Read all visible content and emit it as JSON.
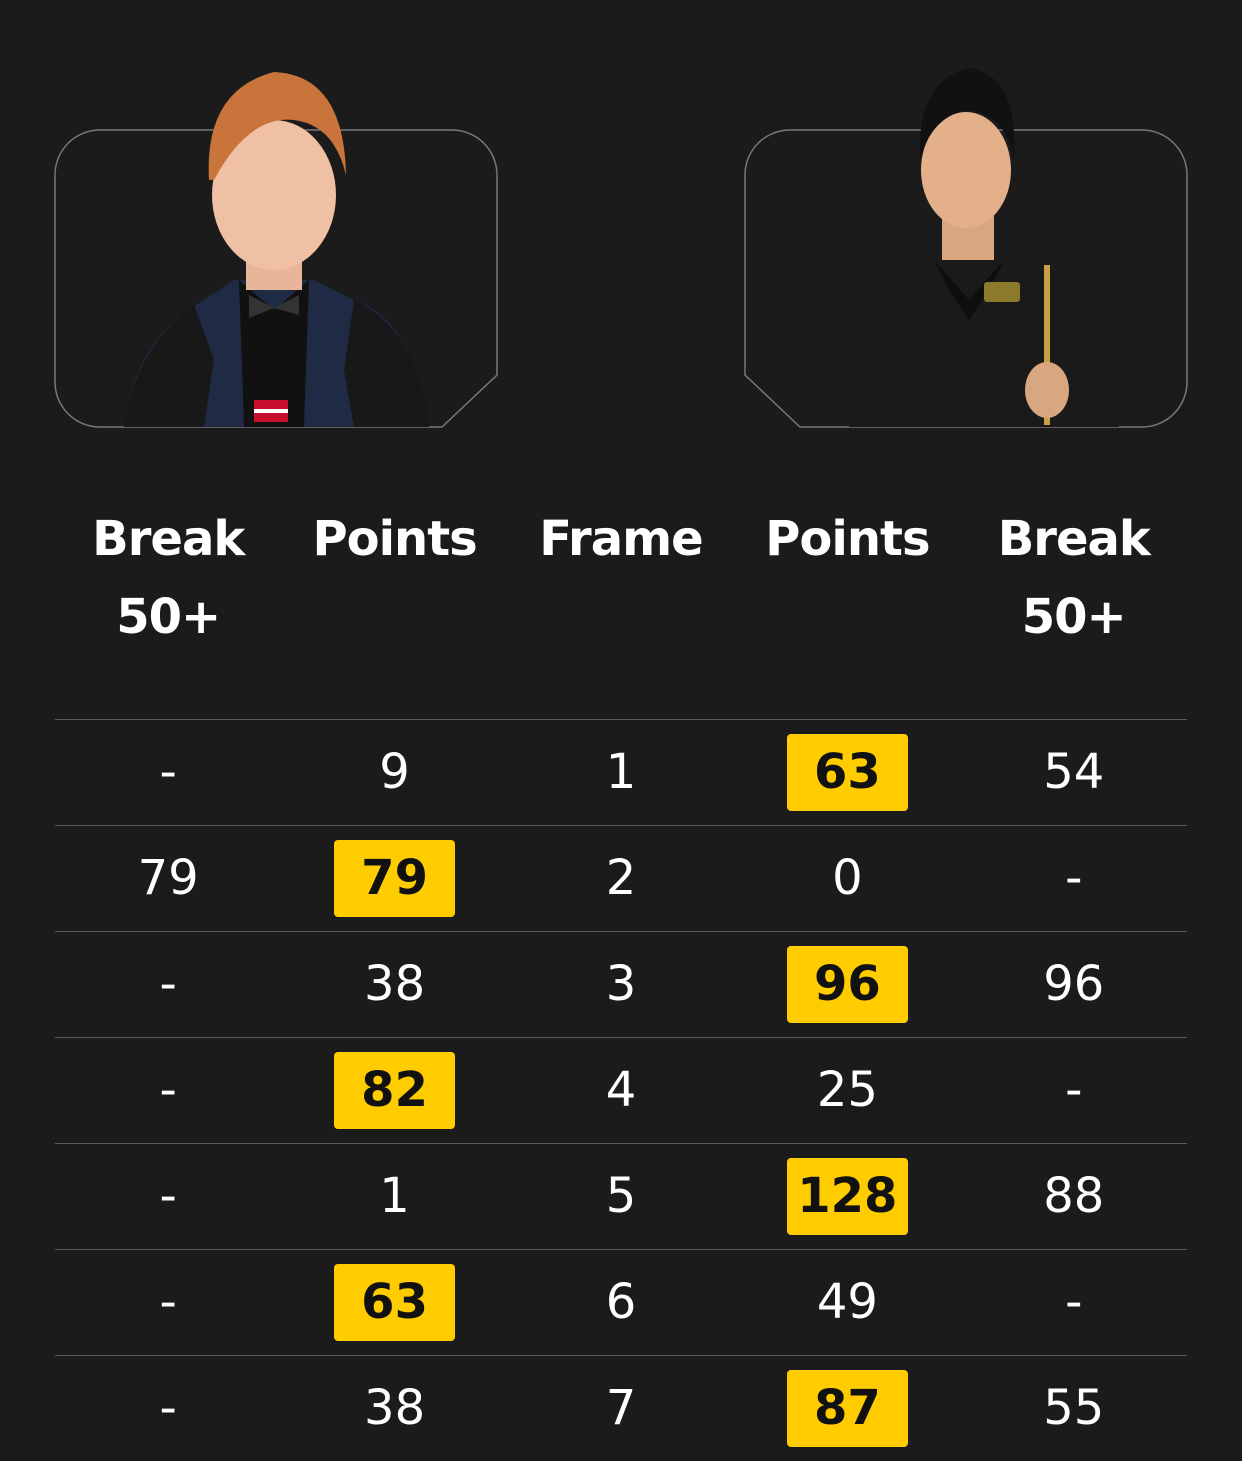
{
  "players": [
    {
      "side": "left",
      "photo": "player-photo-red-hair",
      "flag": "latvia-flag-badge"
    },
    {
      "side": "right",
      "photo": "player-photo-dark-hair-with-cue"
    }
  ],
  "headers": [
    "Break 50+",
    "Points",
    "Frame",
    "Points",
    "Break 50+"
  ],
  "colors": {
    "background": "#1b1b1b",
    "highlight": "#ffcc00",
    "divider": "#5a5a5a"
  },
  "rows": [
    {
      "break1": "-",
      "points1": "9",
      "frame": "1",
      "points2": "63",
      "break2": "54",
      "winner": "right"
    },
    {
      "break1": "79",
      "points1": "79",
      "frame": "2",
      "points2": "0",
      "break2": "-",
      "winner": "left"
    },
    {
      "break1": "-",
      "points1": "38",
      "frame": "3",
      "points2": "96",
      "break2": "96",
      "winner": "right"
    },
    {
      "break1": "-",
      "points1": "82",
      "frame": "4",
      "points2": "25",
      "break2": "-",
      "winner": "left"
    },
    {
      "break1": "-",
      "points1": "1",
      "frame": "5",
      "points2": "128",
      "break2": "88",
      "winner": "right"
    },
    {
      "break1": "-",
      "points1": "63",
      "frame": "6",
      "points2": "49",
      "break2": "-",
      "winner": "left"
    },
    {
      "break1": "-",
      "points1": "38",
      "frame": "7",
      "points2": "87",
      "break2": "55",
      "winner": "right"
    }
  ]
}
